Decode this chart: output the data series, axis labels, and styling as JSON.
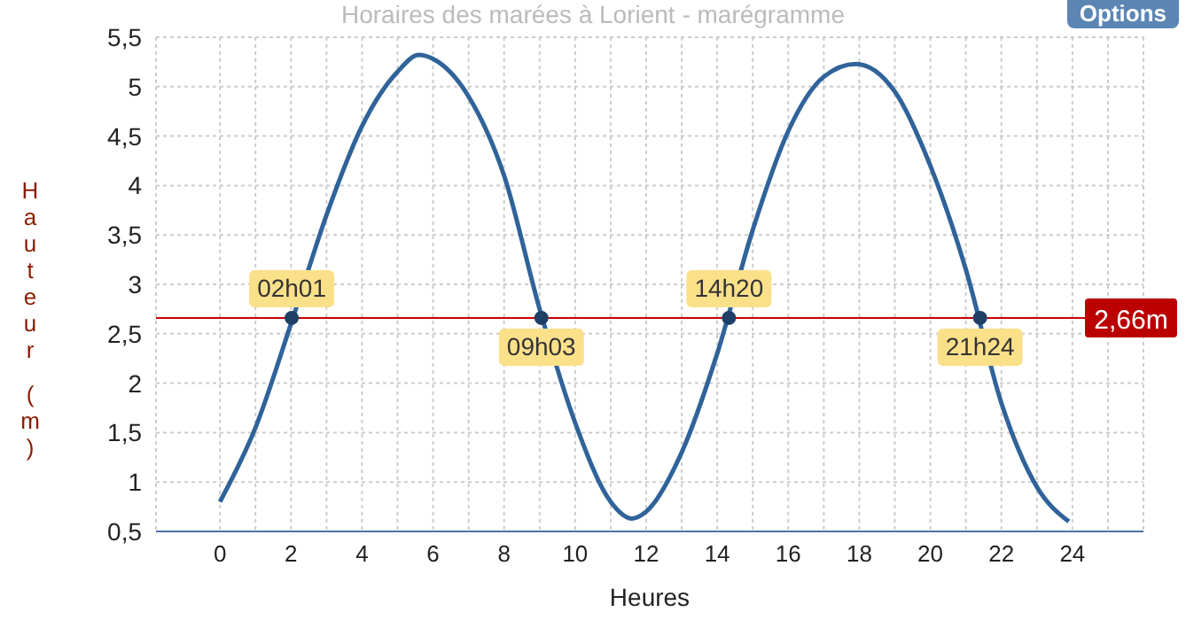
{
  "chart_data": {
    "type": "line",
    "title": "Horaires des marées à Lorient - marégramme",
    "xlabel": "Heures",
    "ylabel": "Hauteur (m)",
    "x": [
      0,
      1,
      2,
      3,
      4,
      5,
      5.6,
      6,
      7,
      8,
      9,
      10,
      11,
      11.6,
      12,
      13,
      14,
      15,
      16,
      17,
      17.9,
      19,
      20,
      21,
      22,
      23,
      23.9
    ],
    "series": [
      {
        "color": "#2f6399",
        "values": [
          0.8,
          1.55,
          2.6,
          3.7,
          4.6,
          5.15,
          5.32,
          5.28,
          4.9,
          4.1,
          2.75,
          1.6,
          0.8,
          0.63,
          0.7,
          1.3,
          2.3,
          3.55,
          4.55,
          5.1,
          5.23,
          4.95,
          4.2,
          3.15,
          1.8,
          0.95,
          0.6
        ]
      }
    ],
    "xlim": [
      -1.8,
      26
    ],
    "xticks": [
      0,
      {
        "value": 1,
        "label": null
      },
      2,
      {
        "value": 3,
        "label": null
      },
      4,
      {
        "value": 5,
        "label": null
      },
      6,
      {
        "value": 7,
        "label": null
      },
      8,
      {
        "value": 9,
        "label": null
      },
      10,
      {
        "value": 11,
        "label": null
      },
      12,
      {
        "value": 13,
        "label": null
      },
      14,
      {
        "value": 15,
        "label": null
      },
      16,
      {
        "value": 17,
        "label": null
      },
      18,
      {
        "value": 19,
        "label": null
      },
      20,
      {
        "value": 21,
        "label": null
      },
      22,
      {
        "value": 23,
        "label": null
      },
      24,
      {
        "value": 25,
        "label": null
      }
    ],
    "ylim": [
      0.5,
      5.5
    ],
    "yticks": [
      {
        "value": 0.5,
        "label": "0,5"
      },
      {
        "value": 1,
        "label": "1"
      },
      {
        "value": 1.5,
        "label": "1,5"
      },
      {
        "value": 2,
        "label": "2"
      },
      {
        "value": 2.5,
        "label": "2,5"
      },
      {
        "value": 3,
        "label": "3"
      },
      {
        "value": 3.5,
        "label": "3,5"
      },
      {
        "value": 4,
        "label": "4"
      },
      {
        "value": 4.5,
        "label": "4,5"
      },
      {
        "value": 5,
        "label": "5"
      },
      {
        "value": 5.5,
        "label": "5,5"
      }
    ],
    "ref_lines": [
      {
        "axis": "y",
        "value": 2.66,
        "label": "2,66m",
        "color": "#cc0000"
      }
    ],
    "annotations": [
      {
        "text": "02h01",
        "x": 2.02,
        "y": 2.66
      },
      {
        "text": "09h03",
        "x": 9.05,
        "y": 2.66
      },
      {
        "text": "14h20",
        "x": 14.33,
        "y": 2.66
      },
      {
        "text": "21h24",
        "x": 21.4,
        "y": 2.66
      },
      "Options"
    ],
    "grid": true,
    "marker": "none",
    "line_style": "solid"
  }
}
